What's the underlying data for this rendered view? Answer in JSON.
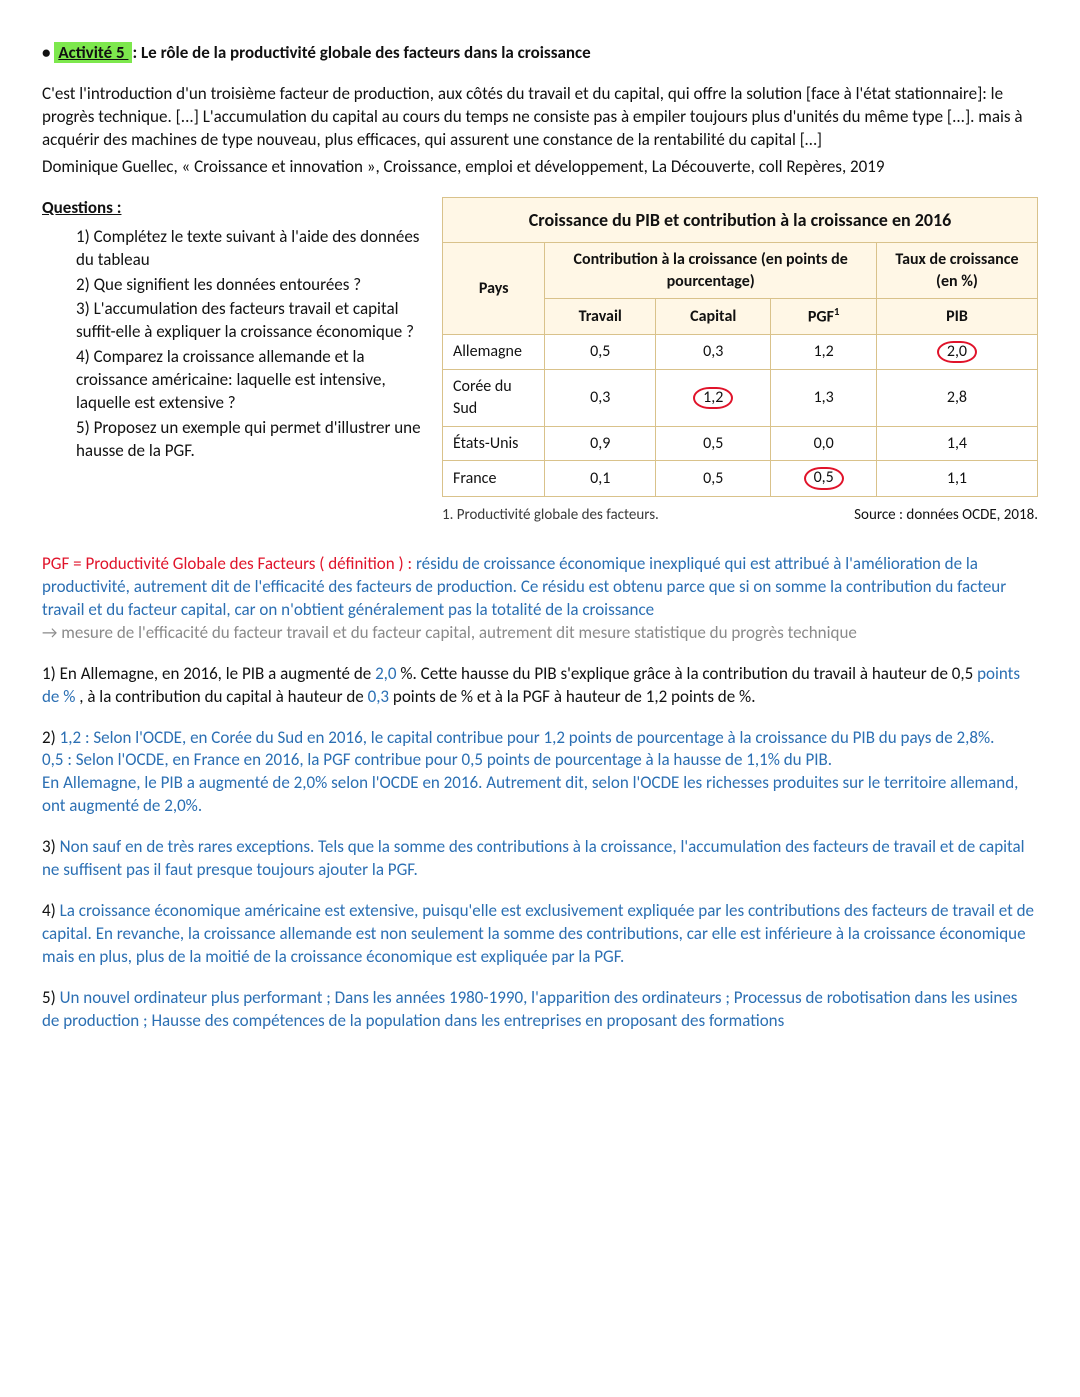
{
  "title": {
    "bullet": "•",
    "highlight": "Activité 5 ",
    "rest": ": Le rôle de la productivité globale des facteurs dans la croissance"
  },
  "intro": "C'est l'introduction d'un troisième facteur de production, aux côtés du travail et du capital, qui offre la solution [face à l'état stationnaire]: le progrès technique. [...] L'accumulation du capital au cours du temps ne consiste pas à empiler toujours plus d'unités du même type [...]. mais à acquérir des machines de type nouveau, plus efficaces, qui assurent une constance de la rentabilité du capital […]",
  "source_line": "Dominique Guellec, « Croissance et innovation », Croissance, emploi et développement, La Découverte, coll Repères, 2019",
  "questions": {
    "heading": "Questions  :",
    "items": [
      "1) Complétez le texte suivant à l'aide des données du tableau",
      "2) Que signifient les données entourées ?",
      "3) L'accumulation des facteurs travail et capital suffit-elle à expliquer la croissance économique ?",
      "4) Comparez la croissance allemande et la croissance américaine: laquelle est intensive, laquelle est extensive ?",
      "5) Proposez un exemple qui permet d'illustrer une hausse de la PGF."
    ]
  },
  "table": {
    "title": "Croissance du PIB et contribution à la croissance en 2016",
    "col_pays": "Pays",
    "col_contrib": "Contribution à la croissance (en points de pourcentage)",
    "col_taux": "Taux de croissance (en %)",
    "sub_travail": "Travail",
    "sub_capital": "Capital",
    "sub_pgf": "PGF",
    "sub_pgf_sup": "1",
    "sub_pib": "PIB",
    "rows": [
      {
        "pays": "Allemagne",
        "travail": "0,5",
        "capital": "0,3",
        "pgf": "1,2",
        "pib": "2,0",
        "circled": "pib"
      },
      {
        "pays": "Corée du Sud",
        "travail": "0,3",
        "capital": "1,2",
        "pgf": "1,3",
        "pib": "2,8",
        "circled": "capital"
      },
      {
        "pays": "États-Unis",
        "travail": "0,9",
        "capital": "0,5",
        "pgf": "0,0",
        "pib": "1,4",
        "circled": ""
      },
      {
        "pays": "France",
        "travail": "0,1",
        "capital": "0,5",
        "pgf": "0,5",
        "pib": "1,1",
        "circled": "pgf"
      }
    ],
    "footnote_left": "1. Productivité globale des facteurs.",
    "footnote_right": "Source : données OCDE, 2018."
  },
  "definition": {
    "label": "PGF = Productivité Globale des Facteurs ( définition ) : ",
    "body": "résidu de croissance économique inexpliqué qui est attribué à l'amélioration de la productivité, autrement dit de l'efficacité des facteurs de production. Ce résidu est obtenu parce que si on somme la contribution du facteur travail et du facteur capital, car on n'obtient généralement pas la totalité de la croissance",
    "arrow": "→ mesure de l'efficacité du facteur travail et du facteur capital, autrement dit mesure statistique du progrès technique"
  },
  "answers": {
    "a1": {
      "pre": "1) En Allemagne, en 2016, le PIB a augmenté de ",
      "v1": "2,0",
      "mid1": " %. Cette hausse du PIB s'explique grâce à la contribution du travail à hauteur de 0,5 ",
      "v2": "points de %",
      "mid2": " , à la contribution du capital à hauteur de ",
      "v3": "0,3",
      "end": " points de % et à la PGF à hauteur de 1,2 points de %."
    },
    "a2": {
      "num": "2) ",
      "l1": "1,2 : Selon l'OCDE, en Corée du Sud en 2016, le capital contribue pour 1,2 points de pourcentage à la croissance du PIB du pays de 2,8%.",
      "l2": "0,5 : Selon l'OCDE, en France en 2016, la PGF contribue pour 0,5 points de pourcentage à la hausse de 1,1% du PIB.",
      "l3": "En Allemagne, le PIB a augmenté de 2,0% selon l'OCDE en 2016. Autrement dit, selon l'OCDE les richesses produites sur le territoire allemand, ont augmenté de 2,0%."
    },
    "a3": {
      "num": "3) ",
      "body": "Non sauf en de très rares exceptions. Tels que la somme des contributions à la croissance, l'accumulation des facteurs de travail et de capital ne suffisent pas il faut presque toujours ajouter la PGF."
    },
    "a4": {
      "num": "4) ",
      "body": "La croissance économique américaine est extensive, puisqu'elle est exclusivement expliquée par les contributions des facteurs de travail et de capital. En revanche, la croissance allemande est non seulement la somme des contributions, car elle est inférieure à la croissance économique mais en plus, plus de la moitié de la croissance économique est expliquée par la PGF."
    },
    "a5": {
      "num": "5) ",
      "body": "Un nouvel ordinateur plus performant ; Dans les années 1980-1990, l'apparition des ordinateurs ; Processus de robotisation dans les usines de production ; Hausse des compétences de la population dans les entreprises en proposant des formations"
    }
  }
}
